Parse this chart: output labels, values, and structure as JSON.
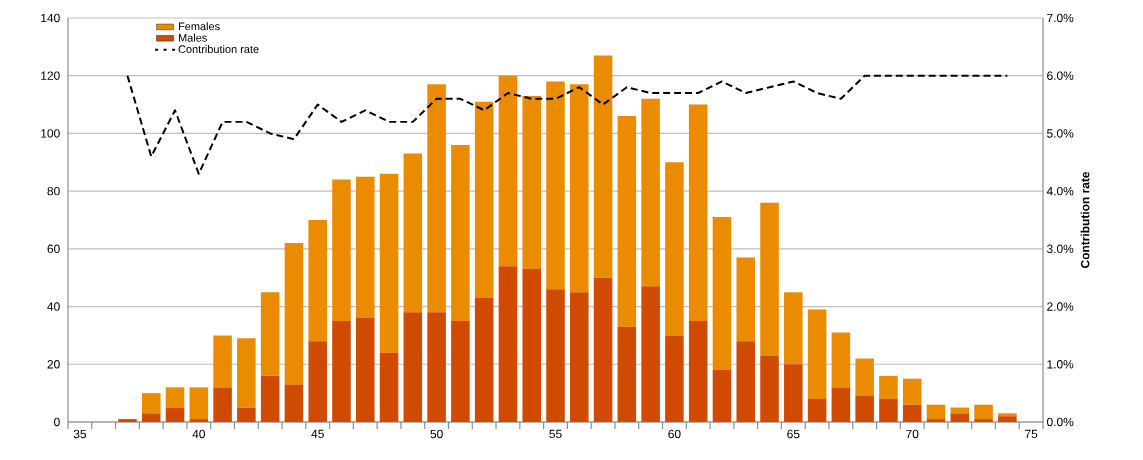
{
  "chart_data": {
    "type": "bar",
    "stacked": true,
    "categories": [
      "35",
      null,
      null,
      null,
      null,
      "40",
      null,
      null,
      null,
      null,
      "45",
      null,
      null,
      null,
      null,
      "50",
      null,
      null,
      null,
      null,
      "55",
      null,
      null,
      null,
      null,
      "60",
      null,
      null,
      null,
      null,
      "65",
      null,
      null,
      null,
      null,
      "70",
      null,
      null,
      null,
      null,
      "75"
    ],
    "series": [
      {
        "name": "Males",
        "color": "#d04a02",
        "values": [
          null,
          null,
          1,
          3,
          5,
          1,
          12,
          5,
          16,
          13,
          28,
          35,
          36,
          24,
          38,
          38,
          35,
          43,
          54,
          53,
          46,
          45,
          50,
          33,
          47,
          30,
          35,
          18,
          28,
          23,
          20,
          8,
          12,
          9,
          8,
          6,
          1,
          3,
          1,
          2,
          null
        ]
      },
      {
        "name": "Females",
        "color": "#eb8c00",
        "values": [
          null,
          null,
          null,
          7,
          7,
          11,
          18,
          24,
          29,
          49,
          42,
          49,
          49,
          62,
          55,
          79,
          61,
          68,
          66,
          60,
          72,
          72,
          77,
          73,
          65,
          60,
          75,
          53,
          29,
          53,
          25,
          31,
          19,
          13,
          8,
          9,
          5,
          2,
          5,
          1,
          null
        ]
      },
      {
        "name": "Contribution rate",
        "type": "line",
        "axis": "y2",
        "line_style": "dashed",
        "color": "#000000",
        "values": [
          null,
          null,
          6.0,
          4.6,
          5.4,
          4.3,
          5.2,
          5.2,
          5.0,
          4.9,
          5.5,
          5.2,
          5.4,
          5.2,
          5.2,
          5.6,
          5.6,
          5.4,
          5.7,
          5.6,
          5.6,
          5.8,
          5.5,
          5.8,
          5.7,
          5.7,
          5.7,
          5.9,
          5.7,
          5.8,
          5.9,
          5.7,
          5.6,
          6.0,
          6.0,
          6.0,
          6.0,
          6.0,
          6.0,
          6.0,
          null
        ]
      }
    ],
    "ylim": [
      0,
      140
    ],
    "yticks": [
      0,
      20,
      40,
      60,
      80,
      100,
      120,
      140
    ],
    "y2lim": [
      0,
      7
    ],
    "y2ticks": [
      {
        "value": 0,
        "label": "0.0%"
      },
      {
        "value": 1,
        "label": "1.0%"
      },
      {
        "value": 2,
        "label": "2.0%"
      },
      {
        "value": 3,
        "label": "3.0%"
      },
      {
        "value": 4,
        "label": "4.0%"
      },
      {
        "value": 5,
        "label": "5.0%"
      },
      {
        "value": 6,
        "label": "6.0%"
      },
      {
        "value": 7,
        "label": "7.0%"
      }
    ],
    "y2label": "Contribution rate",
    "grid": "y",
    "legend": "top left"
  }
}
